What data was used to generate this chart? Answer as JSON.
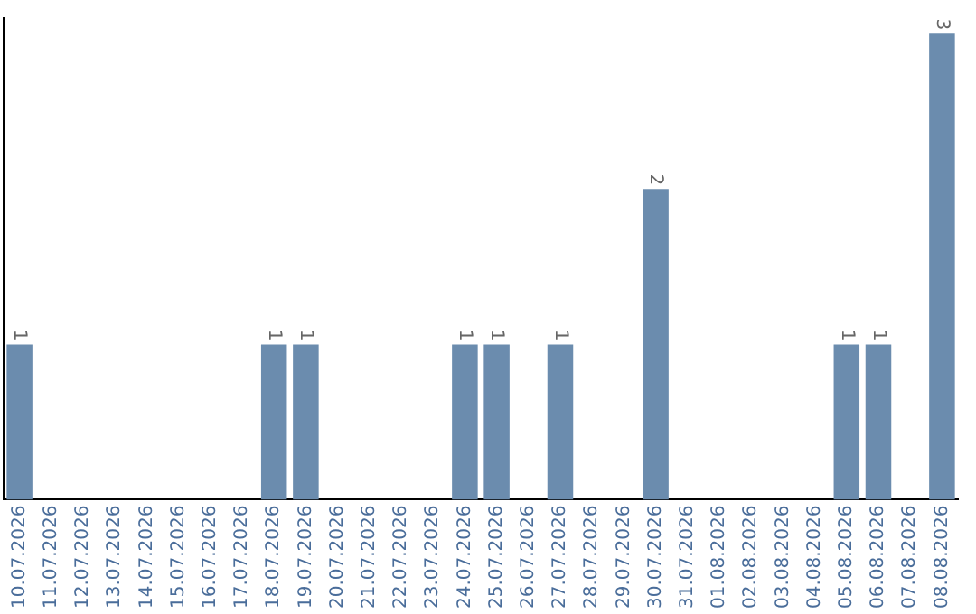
{
  "chart_data": {
    "type": "bar",
    "categories": [
      "10.07.2026",
      "11.07.2026",
      "12.07.2026",
      "13.07.2026",
      "14.07.2026",
      "15.07.2026",
      "16.07.2026",
      "17.07.2026",
      "18.07.2026",
      "19.07.2026",
      "20.07.2026",
      "21.07.2026",
      "22.07.2026",
      "23.07.2026",
      "24.07.2026",
      "25.07.2026",
      "26.07.2026",
      "27.07.2026",
      "28.07.2026",
      "29.07.2026",
      "30.07.2026",
      "31.07.2026",
      "01.08.2026",
      "02.08.2026",
      "03.08.2026",
      "04.08.2026",
      "05.08.2026",
      "06.08.2026",
      "07.08.2026",
      "08.08.2026"
    ],
    "values": [
      1,
      0,
      0,
      0,
      0,
      0,
      0,
      0,
      1,
      1,
      0,
      0,
      0,
      0,
      1,
      1,
      0,
      1,
      0,
      0,
      2,
      0,
      0,
      0,
      0,
      0,
      1,
      1,
      0,
      3
    ],
    "value_labels": [
      "1",
      null,
      null,
      null,
      null,
      null,
      null,
      null,
      "1",
      "1",
      null,
      null,
      null,
      null,
      "1",
      "1",
      null,
      "1",
      null,
      null,
      "2",
      null,
      null,
      null,
      null,
      null,
      "1",
      "1",
      null,
      "3"
    ],
    "color": "#6b8cae",
    "ylim": [
      0,
      3.1
    ],
    "grid": false,
    "legend": false
  }
}
